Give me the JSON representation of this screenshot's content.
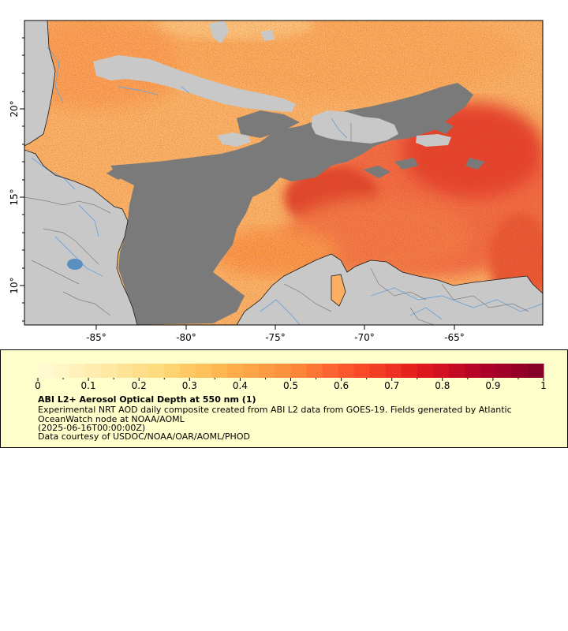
{
  "map": {
    "lon_ticks": [
      "-85°",
      "-80°",
      "-75°",
      "-70°",
      "-65°"
    ],
    "lat_ticks": [
      "20°",
      "15°",
      "10°"
    ],
    "colors": {
      "land": "#c8c8c8",
      "no_data": "#7a7a7a",
      "river": "#6fa3d6",
      "border": "#808080",
      "coast": "#1a1a1a"
    },
    "aod_range": [
      0,
      1
    ]
  },
  "legend": {
    "tick_labels": [
      "0",
      "0.1",
      "0.2",
      "0.3",
      "0.4",
      "0.5",
      "0.6",
      "0.7",
      "0.8",
      "0.9",
      "1"
    ],
    "title": "ABI L2+ Aerosol Optical Depth at 550 nm (1)",
    "description": "Experimental NRT AOD daily composite created from ABI L2 data from GOES-19. Fields generated by Atlantic OceanWatch node at NOAA/AOML",
    "timestamp": "(2025-06-16T00:00:00Z)",
    "credit": "Data courtesy of USDOC/NOAA/OAR/AOML/PHOD",
    "colors": [
      "#fffbd6",
      "#fff3bf",
      "#ffeaa8",
      "#fee090",
      "#fed976",
      "#fec45e",
      "#feb24c",
      "#fd9f44",
      "#fd8d3c",
      "#fc6d33",
      "#fc4e2a",
      "#ef3924",
      "#e31a1c",
      "#cc0e22",
      "#b10026",
      "#9a0028",
      "#800026"
    ]
  }
}
